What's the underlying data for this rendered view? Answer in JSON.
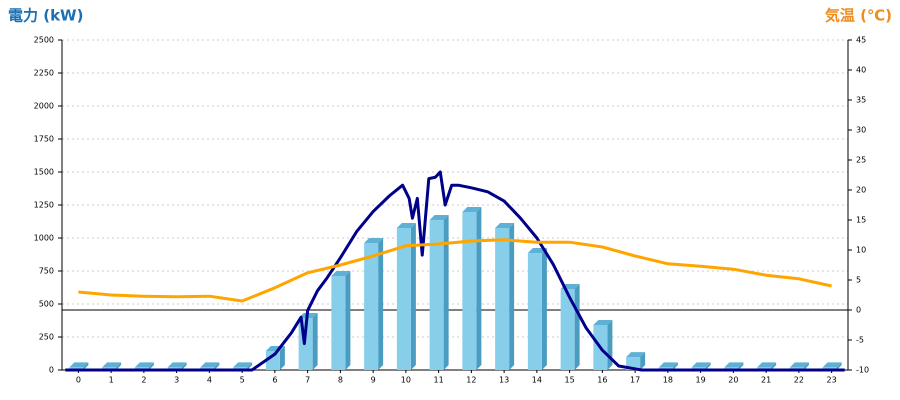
{
  "chart_data": {
    "type": "bar",
    "title": "電力 (kW)",
    "y2_title": "気温 (℃)",
    "categories": [
      "0",
      "1",
      "2",
      "3",
      "4",
      "5",
      "6",
      "7",
      "8",
      "9",
      "10",
      "11",
      "12",
      "13",
      "14",
      "15",
      "16",
      "17",
      "18",
      "19",
      "20",
      "21",
      "22",
      "23"
    ],
    "ylim": [
      0,
      2500
    ],
    "yticks": [
      0,
      250,
      500,
      750,
      1000,
      1250,
      1500,
      1750,
      2000,
      2250,
      2500
    ],
    "y2lim": [
      -10,
      45
    ],
    "y2ticks": [
      -10,
      -5,
      0,
      5,
      10,
      15,
      20,
      25,
      30,
      35,
      40,
      45
    ],
    "grid": true,
    "series": [
      {
        "type": "bar",
        "color": "#87ceeb",
        "values": [
          20,
          20,
          20,
          20,
          20,
          20,
          144,
          394,
          712,
          962,
          1076,
          1136,
          1197,
          1076,
          886,
          614,
          341,
          98,
          20,
          20,
          20,
          20,
          20,
          20
        ]
      },
      {
        "type": "line",
        "color": "#00008b",
        "x": [
          -0.4,
          5.3,
          6,
          6.5,
          6.8,
          6.9,
          7,
          7.3,
          7.6,
          8,
          8.5,
          9,
          9.5,
          9.9,
          10.1,
          10.2,
          10.35,
          10.5,
          10.7,
          10.9,
          11.05,
          11.2,
          11.4,
          11.6,
          12,
          12.5,
          13,
          13.5,
          14,
          14.5,
          15,
          15.5,
          16,
          16.5,
          17.2,
          23.4
        ],
        "values": [
          0,
          0,
          120,
          280,
          400,
          200,
          450,
          600,
          700,
          850,
          1050,
          1200,
          1320,
          1400,
          1300,
          1150,
          1300,
          870,
          1450,
          1460,
          1500,
          1250,
          1400,
          1400,
          1380,
          1350,
          1280,
          1150,
          1000,
          800,
          550,
          320,
          150,
          30,
          0,
          0
        ]
      },
      {
        "type": "line",
        "axis": "y2",
        "color": "#ffa500",
        "values": [
          3,
          2.5,
          2.3,
          2.2,
          2.3,
          1.5,
          3.7,
          6.2,
          7.5,
          9,
          10.7,
          11,
          11.5,
          11.7,
          11.3,
          11.3,
          10.5,
          9,
          7.7,
          7.3,
          6.8,
          5.8,
          5.2,
          4
        ]
      }
    ]
  }
}
